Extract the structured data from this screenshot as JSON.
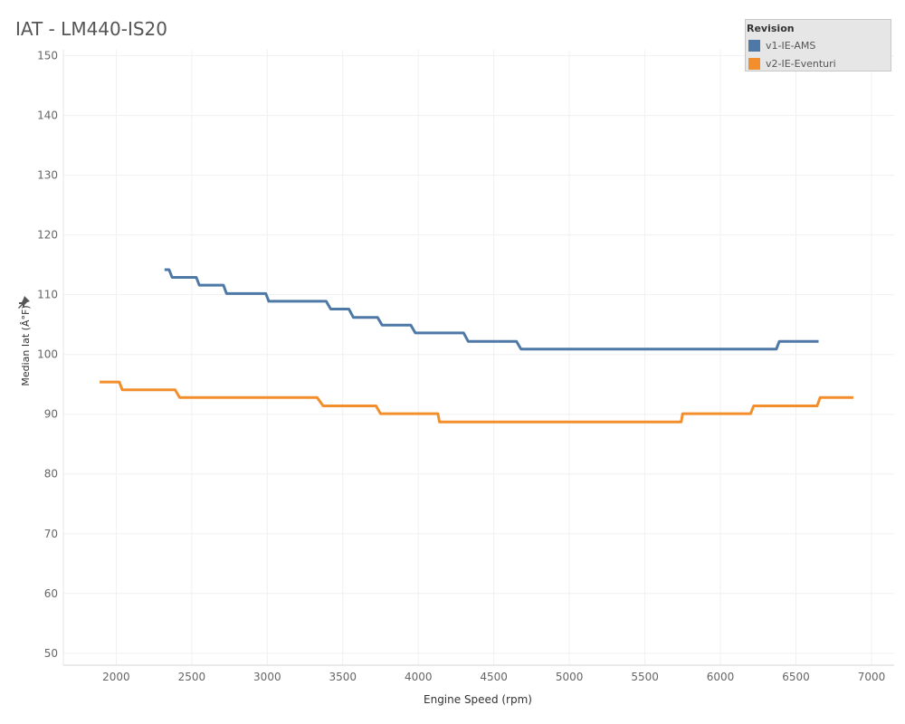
{
  "title": "IAT - LM440-IS20",
  "legend": {
    "title": "Revision",
    "items": [
      {
        "label": "v1-IE-AMS",
        "color": "#4e79a7"
      },
      {
        "label": "v2-IE-Eventuri",
        "color": "#f28e2b"
      }
    ]
  },
  "icons": {
    "ylabel_pin": "pin-icon"
  },
  "chart_data": {
    "type": "line",
    "xlabel": "Engine Speed (rpm)",
    "ylabel": "Median Iat (Â°F)",
    "xlim": [
      1650,
      7150
    ],
    "ylim": [
      48,
      151
    ],
    "xticks": [
      2000,
      2500,
      3000,
      3500,
      4000,
      4500,
      5000,
      5500,
      6000,
      6500,
      7000
    ],
    "yticks": [
      50,
      60,
      70,
      80,
      90,
      100,
      110,
      120,
      130,
      140,
      150
    ],
    "grid": true,
    "legend_position": "top-right",
    "series": [
      {
        "name": "v1-IE-AMS",
        "color": "#4e79a7",
        "points": [
          [
            2320,
            114.2
          ],
          [
            2350,
            114.2
          ],
          [
            2370,
            112.9
          ],
          [
            2530,
            112.9
          ],
          [
            2550,
            111.6
          ],
          [
            2710,
            111.6
          ],
          [
            2730,
            110.2
          ],
          [
            2990,
            110.2
          ],
          [
            3010,
            108.9
          ],
          [
            3390,
            108.9
          ],
          [
            3420,
            107.6
          ],
          [
            3540,
            107.6
          ],
          [
            3570,
            106.2
          ],
          [
            3730,
            106.2
          ],
          [
            3760,
            104.9
          ],
          [
            3950,
            104.9
          ],
          [
            3980,
            103.6
          ],
          [
            4300,
            103.6
          ],
          [
            4330,
            102.2
          ],
          [
            4650,
            102.2
          ],
          [
            4680,
            100.9
          ],
          [
            6370,
            100.9
          ],
          [
            6390,
            102.2
          ],
          [
            6650,
            102.2
          ]
        ]
      },
      {
        "name": "v2-IE-Eventuri",
        "color": "#f28e2b",
        "points": [
          [
            1890,
            95.4
          ],
          [
            2020,
            95.4
          ],
          [
            2040,
            94.1
          ],
          [
            2390,
            94.1
          ],
          [
            2420,
            92.8
          ],
          [
            3330,
            92.8
          ],
          [
            3370,
            91.4
          ],
          [
            3720,
            91.4
          ],
          [
            3750,
            90.1
          ],
          [
            4130,
            90.1
          ],
          [
            4140,
            88.7
          ],
          [
            5740,
            88.7
          ],
          [
            5750,
            90.1
          ],
          [
            6200,
            90.1
          ],
          [
            6220,
            91.4
          ],
          [
            6640,
            91.4
          ],
          [
            6660,
            92.8
          ],
          [
            6880,
            92.8
          ]
        ]
      }
    ]
  }
}
